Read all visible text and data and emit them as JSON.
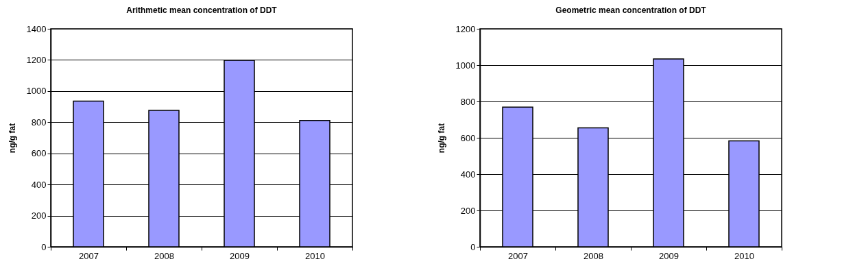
{
  "chart_data": [
    {
      "type": "bar",
      "title": "Arithmetic mean concentration of DDT",
      "ylabel": "ng/g fat",
      "categories": [
        "2007",
        "2008",
        "2009",
        "2010"
      ],
      "values": [
        935,
        876,
        1198,
        811
      ],
      "color": "#9999ff",
      "ylim": [
        0,
        1400
      ],
      "yticks": [
        0,
        200,
        400,
        600,
        800,
        1000,
        1200,
        1400
      ],
      "grid": "y"
    },
    {
      "type": "bar",
      "title": "Geometric mean concentration of DDT",
      "ylabel": "ng/g fat",
      "categories": [
        "2007",
        "2008",
        "2009",
        "2010"
      ],
      "values": [
        769,
        655,
        1034,
        583
      ],
      "color": "#9999ff",
      "ylim": [
        0,
        1200
      ],
      "yticks": [
        0,
        200,
        400,
        600,
        800,
        1000,
        1200
      ],
      "grid": "y"
    }
  ]
}
